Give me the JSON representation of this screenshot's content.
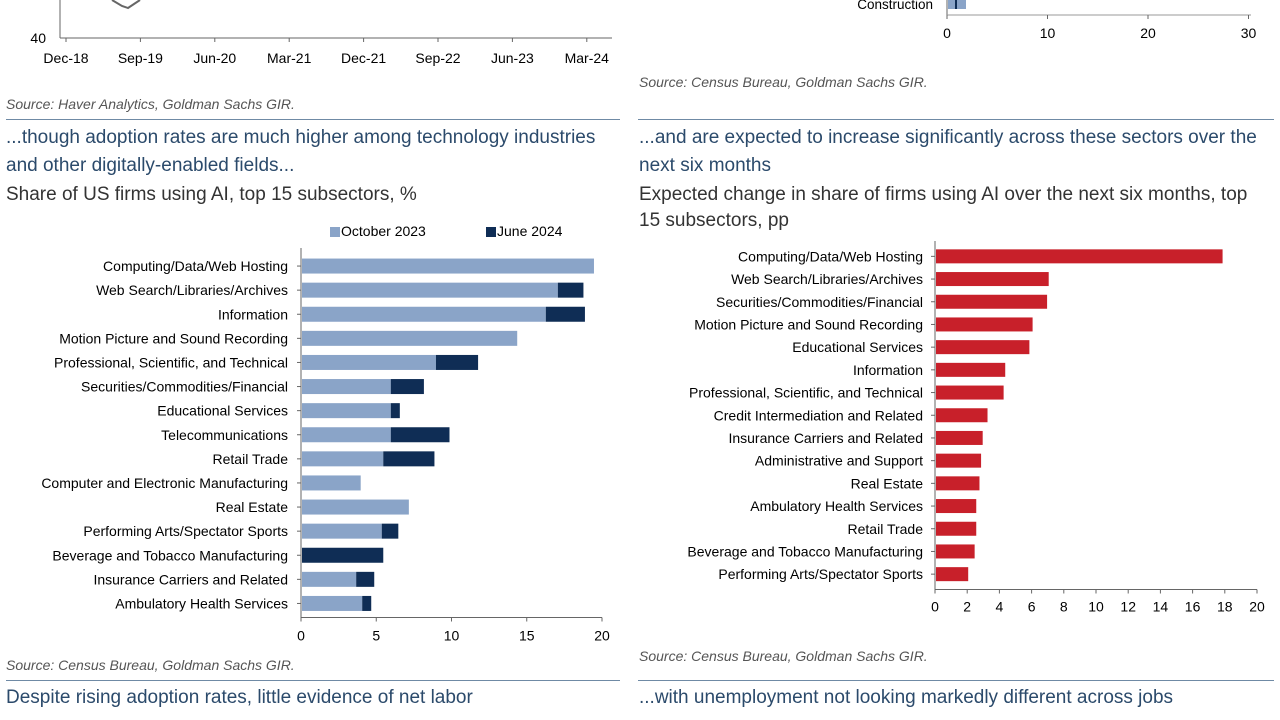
{
  "colors": {
    "oct": "#8aa4c8",
    "jun": "#0f2d55",
    "red": "#c8202a",
    "headline": "#2b4a6b"
  },
  "top_left": {
    "y_tick_bottom": "40",
    "x_ticks": [
      "Dec-18",
      "Sep-19",
      "Jun-20",
      "Mar-21",
      "Dec-21",
      "Sep-22",
      "Jun-23",
      "Mar-24"
    ],
    "source": "Source: Haver Analytics, Goldman Sachs GIR."
  },
  "top_right": {
    "visible_category": "Construction",
    "x_ticks": [
      "0",
      "10",
      "20",
      "30"
    ],
    "source": "Source: Census Bureau, Goldman Sachs GIR."
  },
  "left_panel": {
    "headline": "...though adoption rates are much higher among technology industries and other digitally-enabled fields...",
    "subtitle": "Share of US firms using AI, top 15 subsectors, %",
    "source": "Source: Census Bureau, Goldman Sachs GIR."
  },
  "right_panel": {
    "headline": "...and are expected to increase significantly across these sectors over the next six months",
    "subtitle": "Expected change in share of firms using AI over the next six months, top 15 subsectors, pp",
    "source": "Source: Census Bureau, Goldman Sachs GIR."
  },
  "bottom": {
    "left_headline": "Despite rising adoption rates, little evidence of net labor",
    "right_headline": "...with unemployment not looking markedly different across jobs"
  },
  "chart_data": [
    {
      "type": "bar",
      "orientation": "horizontal",
      "stacked": true,
      "title": "Share of US firms using AI, top 15 subsectors, %",
      "categories": [
        "Computing/Data/Web Hosting",
        "Web Search/Libraries/Archives",
        "Information",
        "Motion Picture and Sound Recording",
        "Professional, Scientific, and Technical",
        "Securities/Commodities/Financial",
        "Educational Services",
        "Telecommunications",
        "Retail Trade",
        "Computer and Electronic Manufacturing",
        "Real Estate",
        "Performing Arts/Spectator Sports",
        "Beverage and Tobacco Manufacturing",
        "Insurance Carriers and Related",
        "Ambulatory Health Services"
      ],
      "series": [
        {
          "name": "October 2023",
          "values": [
            19.4,
            17.0,
            16.2,
            14.3,
            8.9,
            5.9,
            5.9,
            5.9,
            5.4,
            3.9,
            7.1,
            5.3,
            0,
            3.6,
            4.0
          ]
        },
        {
          "name": "June 2024",
          "values": [
            0,
            1.7,
            2.6,
            0,
            2.8,
            2.2,
            0.6,
            3.9,
            3.4,
            0,
            0,
            1.1,
            5.4,
            1.2,
            0.6
          ]
        }
      ],
      "xlim": [
        0,
        20
      ],
      "x_ticks": [
        "0",
        "5",
        "10",
        "15",
        "20"
      ],
      "legend": "top-right"
    },
    {
      "type": "bar",
      "orientation": "horizontal",
      "title": "Expected change in share of firms using AI over the next six months, top 15 subsectors, pp",
      "categories": [
        "Computing/Data/Web Hosting",
        "Web Search/Libraries/Archives",
        "Securities/Commodities/Financial",
        "Motion Picture and Sound Recording",
        "Educational Services",
        "Information",
        "Professional, Scientific, and Technical",
        "Credit Intermediation and Related",
        "Insurance Carriers and Related",
        "Administrative and Support",
        "Real Estate",
        "Ambulatory Health Services",
        "Retail Trade",
        "Beverage and Tobacco Manufacturing",
        "Performing Arts/Spectator Sports"
      ],
      "values": [
        17.8,
        7.0,
        6.9,
        6.0,
        5.8,
        4.3,
        4.2,
        3.2,
        2.9,
        2.8,
        2.7,
        2.5,
        2.5,
        2.4,
        2.0
      ],
      "xlim": [
        0,
        20
      ],
      "x_ticks": [
        "0",
        "2",
        "4",
        "6",
        "8",
        "10",
        "12",
        "14",
        "16",
        "18",
        "20"
      ]
    }
  ]
}
